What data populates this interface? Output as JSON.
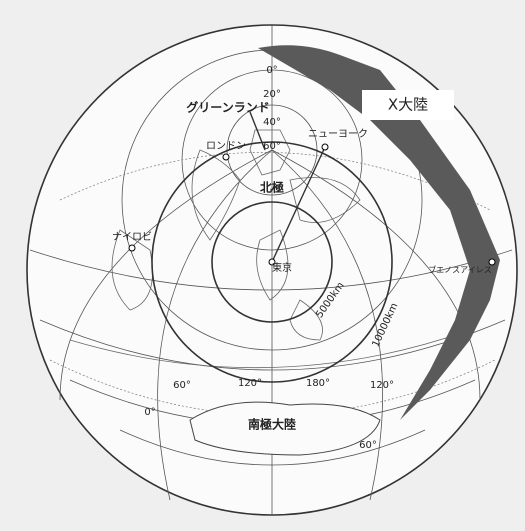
{
  "labels": {
    "x_continent": "X大陸",
    "greenland": "グリーンランド",
    "north_pole": "北極",
    "antarctica": "南極大陸"
  },
  "cities": {
    "london": "ロンドン",
    "new_york": "ニューヨーク",
    "nairobi": "ナイロビ",
    "tokyo": "東京",
    "buenos_aires": "ブエノスアイレス"
  },
  "distance_circles": [
    "5000km",
    "10000km"
  ],
  "latitude_labels": [
    "0°",
    "20°",
    "40°",
    "60°"
  ],
  "longitude_labels": [
    "60°",
    "120°",
    "180°",
    "120°",
    "0°",
    "60°"
  ]
}
